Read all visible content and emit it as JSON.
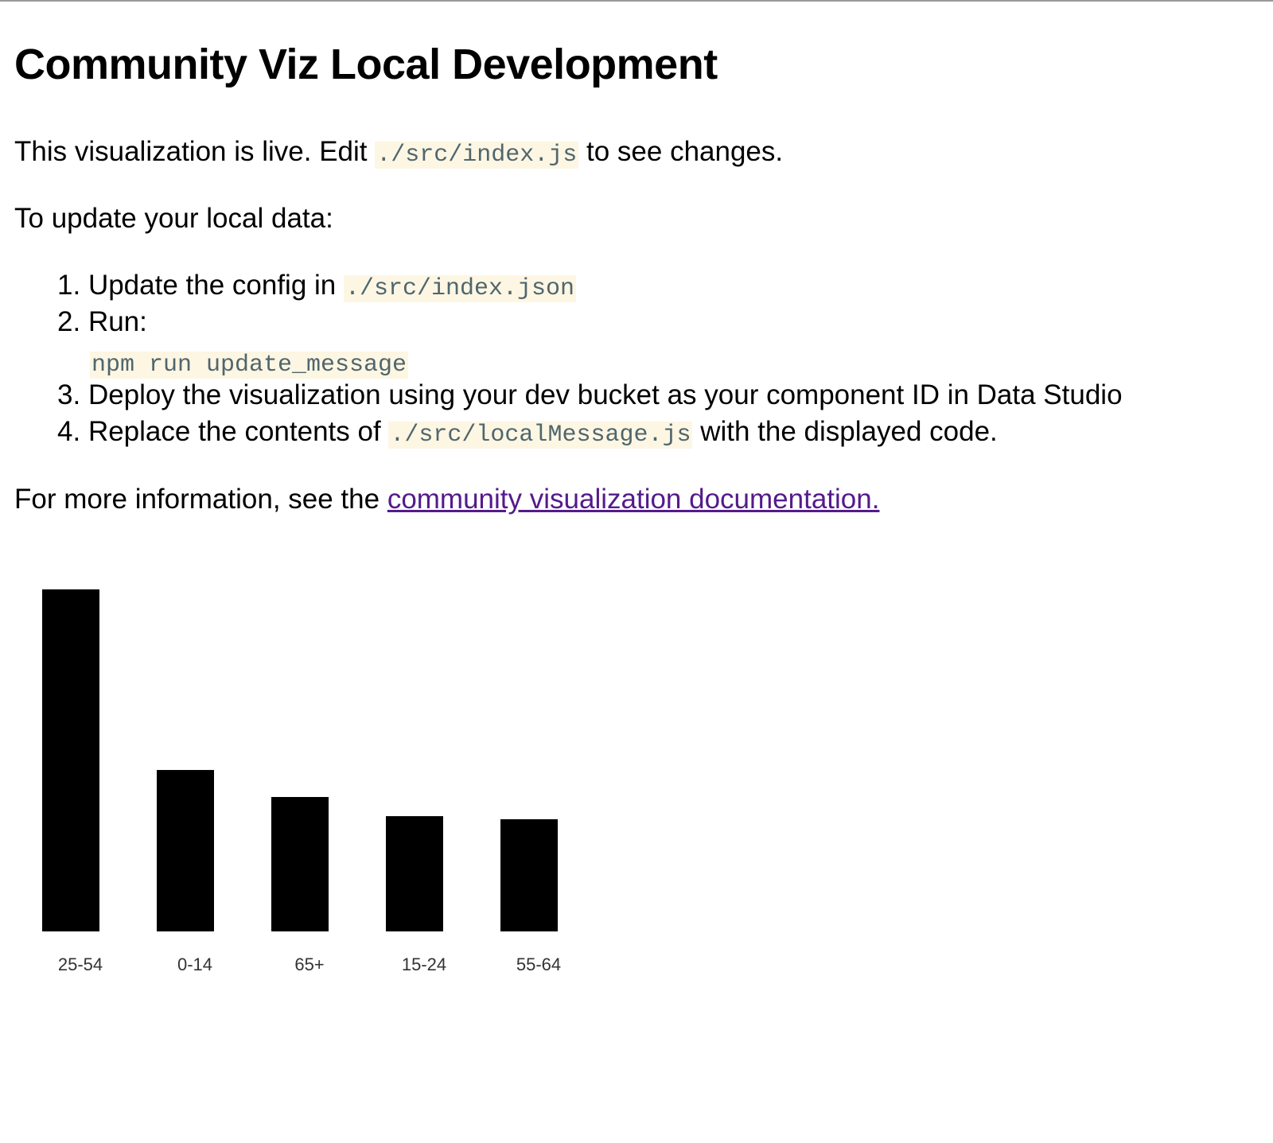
{
  "title": "Community Viz Local Development",
  "intro": {
    "before": "This visualization is live. Edit ",
    "code": "./src/index.js",
    "after": " to see changes."
  },
  "update_heading": "To update your local data:",
  "steps": [
    {
      "num": "1.",
      "text": "Update the config in ",
      "code": "./src/index.json"
    },
    {
      "num": "2.",
      "text": "Run:",
      "code": "npm run update_message"
    },
    {
      "num": "3.",
      "text": "Deploy the visualization using your dev bucket as your component ID in Data Studio"
    },
    {
      "num": "4.",
      "text": "Replace the contents of ",
      "code": "./src/localMessage.js",
      "after": " with the displayed code."
    }
  ],
  "more_info": {
    "before": "For more information, see the ",
    "link": "community visualization documentation."
  },
  "chart_data": {
    "type": "bar",
    "categories": [
      "25-54",
      "0-14",
      "65+",
      "15-24",
      "55-64"
    ],
    "values": [
      100,
      47.2,
      39.3,
      33.7,
      32.8
    ],
    "bar_color": "#000000",
    "grid": false,
    "title": "",
    "xlabel": "",
    "ylabel": ""
  }
}
